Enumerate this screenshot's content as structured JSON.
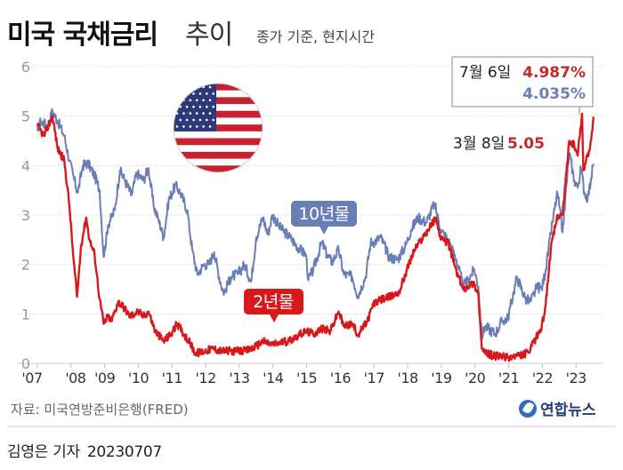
{
  "header": {
    "title_bold": "미국 국채금리",
    "title_light": "추이",
    "subtitle": "종가 기준, 현지시간"
  },
  "footer": {
    "source": "자료: 미국연방준비은행(FRED)",
    "logo_text": "연합뉴스",
    "reporter": "김영은 기자",
    "date": "20230707"
  },
  "annotations": {
    "box_date": "7월 6일",
    "box_red_value": "4.987%",
    "box_blue_value": "4.035%",
    "peak_date": "3월 8일",
    "peak_value": "5.05"
  },
  "colors": {
    "ten_year": "#6a7eb6",
    "two_year": "#d7191c",
    "annotation_red": "#c62828",
    "axis_text": "#999999",
    "grid": "#dddddd"
  },
  "chart_data": {
    "type": "line",
    "x_ticks": [
      "'07",
      "'08",
      "'09",
      "'10",
      "'11",
      "'12",
      "'13",
      "'14",
      "'15",
      "'16",
      "'17",
      "'18",
      "'19",
      "'20",
      "'21",
      "'22",
      "'23"
    ],
    "y_ticks": [
      "0",
      "1",
      "2",
      "3",
      "4",
      "5",
      "6"
    ],
    "ylim": [
      0,
      6
    ],
    "xlim": [
      2007.0,
      2023.55
    ],
    "series": [
      {
        "name": "10년물",
        "color": "#6a7eb6",
        "points": [
          [
            2007.0,
            4.7
          ],
          [
            2007.1,
            4.9
          ],
          [
            2007.3,
            4.8
          ],
          [
            2007.45,
            5.1
          ],
          [
            2007.6,
            4.9
          ],
          [
            2007.8,
            4.6
          ],
          [
            2007.95,
            4.1
          ],
          [
            2008.1,
            3.7
          ],
          [
            2008.2,
            3.45
          ],
          [
            2008.35,
            4.0
          ],
          [
            2008.5,
            4.05
          ],
          [
            2008.7,
            3.8
          ],
          [
            2008.85,
            3.5
          ],
          [
            2008.97,
            2.15
          ],
          [
            2009.1,
            2.8
          ],
          [
            2009.3,
            3.1
          ],
          [
            2009.45,
            3.9
          ],
          [
            2009.6,
            3.7
          ],
          [
            2009.8,
            3.4
          ],
          [
            2009.95,
            3.85
          ],
          [
            2010.15,
            3.7
          ],
          [
            2010.3,
            3.95
          ],
          [
            2010.45,
            3.2
          ],
          [
            2010.6,
            2.9
          ],
          [
            2010.75,
            2.55
          ],
          [
            2010.9,
            3.3
          ],
          [
            2011.1,
            3.6
          ],
          [
            2011.25,
            3.45
          ],
          [
            2011.45,
            3.1
          ],
          [
            2011.6,
            2.3
          ],
          [
            2011.75,
            1.8
          ],
          [
            2011.95,
            2.0
          ],
          [
            2012.1,
            2.0
          ],
          [
            2012.25,
            2.25
          ],
          [
            2012.45,
            1.6
          ],
          [
            2012.55,
            1.43
          ],
          [
            2012.75,
            1.75
          ],
          [
            2012.95,
            1.8
          ],
          [
            2013.15,
            2.0
          ],
          [
            2013.35,
            1.65
          ],
          [
            2013.5,
            2.55
          ],
          [
            2013.7,
            2.95
          ],
          [
            2013.85,
            2.6
          ],
          [
            2013.98,
            3.0
          ],
          [
            2014.2,
            2.75
          ],
          [
            2014.5,
            2.55
          ],
          [
            2014.8,
            2.3
          ],
          [
            2014.98,
            2.2
          ],
          [
            2015.05,
            1.68
          ],
          [
            2015.2,
            1.9
          ],
          [
            2015.45,
            2.45
          ],
          [
            2015.6,
            2.2
          ],
          [
            2015.75,
            2.05
          ],
          [
            2015.95,
            2.3
          ],
          [
            2016.1,
            1.8
          ],
          [
            2016.35,
            1.75
          ],
          [
            2016.52,
            1.37
          ],
          [
            2016.75,
            1.75
          ],
          [
            2016.9,
            2.45
          ],
          [
            2016.98,
            2.45
          ],
          [
            2017.2,
            2.55
          ],
          [
            2017.45,
            2.15
          ],
          [
            2017.7,
            2.1
          ],
          [
            2017.95,
            2.4
          ],
          [
            2018.1,
            2.7
          ],
          [
            2018.3,
            2.95
          ],
          [
            2018.55,
            2.85
          ],
          [
            2018.8,
            3.23
          ],
          [
            2018.98,
            2.7
          ],
          [
            2019.2,
            2.5
          ],
          [
            2019.45,
            2.1
          ],
          [
            2019.65,
            1.55
          ],
          [
            2019.8,
            1.7
          ],
          [
            2019.98,
            1.9
          ],
          [
            2020.1,
            1.55
          ],
          [
            2020.2,
            0.54
          ],
          [
            2020.3,
            0.75
          ],
          [
            2020.6,
            0.6
          ],
          [
            2020.8,
            0.85
          ],
          [
            2020.98,
            0.92
          ],
          [
            2021.15,
            1.45
          ],
          [
            2021.25,
            1.74
          ],
          [
            2021.5,
            1.3
          ],
          [
            2021.65,
            1.25
          ],
          [
            2021.85,
            1.55
          ],
          [
            2021.98,
            1.5
          ],
          [
            2022.1,
            1.9
          ],
          [
            2022.3,
            2.85
          ],
          [
            2022.45,
            3.45
          ],
          [
            2022.6,
            2.65
          ],
          [
            2022.8,
            4.25
          ],
          [
            2022.95,
            3.7
          ],
          [
            2023.05,
            3.55
          ],
          [
            2023.15,
            3.95
          ],
          [
            2023.25,
            3.45
          ],
          [
            2023.35,
            3.35
          ],
          [
            2023.45,
            3.75
          ],
          [
            2023.52,
            4.035
          ]
        ]
      },
      {
        "name": "2년물",
        "color": "#d7191c",
        "points": [
          [
            2007.0,
            4.8
          ],
          [
            2007.2,
            4.6
          ],
          [
            2007.45,
            5.0
          ],
          [
            2007.6,
            4.35
          ],
          [
            2007.8,
            4.1
          ],
          [
            2007.95,
            3.2
          ],
          [
            2008.08,
            2.05
          ],
          [
            2008.18,
            1.35
          ],
          [
            2008.3,
            2.4
          ],
          [
            2008.45,
            2.95
          ],
          [
            2008.55,
            2.5
          ],
          [
            2008.7,
            2.2
          ],
          [
            2008.85,
            1.3
          ],
          [
            2008.97,
            0.8
          ],
          [
            2009.1,
            0.95
          ],
          [
            2009.2,
            0.85
          ],
          [
            2009.4,
            1.25
          ],
          [
            2009.55,
            1.15
          ],
          [
            2009.75,
            0.95
          ],
          [
            2009.98,
            1.05
          ],
          [
            2010.15,
            0.95
          ],
          [
            2010.3,
            1.05
          ],
          [
            2010.5,
            0.65
          ],
          [
            2010.75,
            0.45
          ],
          [
            2010.98,
            0.6
          ],
          [
            2011.15,
            0.8
          ],
          [
            2011.3,
            0.65
          ],
          [
            2011.5,
            0.45
          ],
          [
            2011.7,
            0.2
          ],
          [
            2011.98,
            0.25
          ],
          [
            2012.2,
            0.3
          ],
          [
            2012.5,
            0.25
          ],
          [
            2012.8,
            0.25
          ],
          [
            2012.98,
            0.25
          ],
          [
            2013.2,
            0.25
          ],
          [
            2013.5,
            0.35
          ],
          [
            2013.7,
            0.45
          ],
          [
            2013.98,
            0.38
          ],
          [
            2014.2,
            0.42
          ],
          [
            2014.45,
            0.45
          ],
          [
            2014.7,
            0.55
          ],
          [
            2014.98,
            0.65
          ],
          [
            2015.2,
            0.6
          ],
          [
            2015.45,
            0.7
          ],
          [
            2015.7,
            0.65
          ],
          [
            2015.95,
            1.05
          ],
          [
            2016.1,
            0.75
          ],
          [
            2016.35,
            0.8
          ],
          [
            2016.52,
            0.58
          ],
          [
            2016.8,
            0.85
          ],
          [
            2016.98,
            1.2
          ],
          [
            2017.25,
            1.3
          ],
          [
            2017.5,
            1.35
          ],
          [
            2017.75,
            1.45
          ],
          [
            2017.98,
            1.9
          ],
          [
            2018.2,
            2.3
          ],
          [
            2018.45,
            2.55
          ],
          [
            2018.7,
            2.8
          ],
          [
            2018.85,
            2.95
          ],
          [
            2018.98,
            2.5
          ],
          [
            2019.2,
            2.45
          ],
          [
            2019.45,
            1.85
          ],
          [
            2019.65,
            1.5
          ],
          [
            2019.85,
            1.6
          ],
          [
            2019.98,
            1.6
          ],
          [
            2020.1,
            1.4
          ],
          [
            2020.2,
            0.3
          ],
          [
            2020.3,
            0.2
          ],
          [
            2020.6,
            0.15
          ],
          [
            2020.98,
            0.12
          ],
          [
            2021.3,
            0.15
          ],
          [
            2021.6,
            0.22
          ],
          [
            2021.8,
            0.5
          ],
          [
            2021.98,
            0.73
          ],
          [
            2022.1,
            1.2
          ],
          [
            2022.25,
            2.3
          ],
          [
            2022.45,
            3.0
          ],
          [
            2022.6,
            3.0
          ],
          [
            2022.8,
            4.5
          ],
          [
            2022.95,
            4.4
          ],
          [
            2023.05,
            4.2
          ],
          [
            2023.18,
            5.05
          ],
          [
            2023.22,
            3.9
          ],
          [
            2023.3,
            4.1
          ],
          [
            2023.4,
            4.3
          ],
          [
            2023.52,
            4.987
          ]
        ]
      }
    ],
    "series_labels": [
      "10년물",
      "2년물"
    ]
  }
}
